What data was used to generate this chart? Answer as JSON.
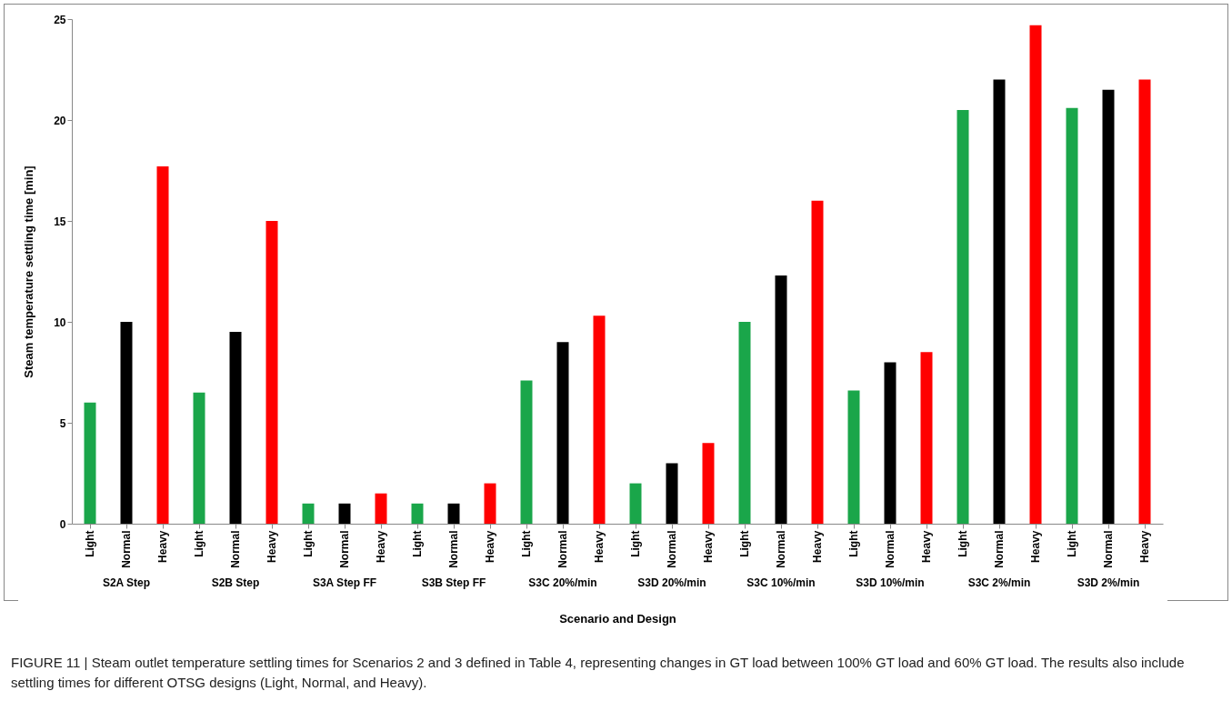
{
  "chart_data": {
    "type": "bar",
    "xlabel": "Scenario and Design",
    "ylabel": "Steam temperature settling time [min]",
    "categories": [
      "S2A Step",
      "S2B Step",
      "S3A Step FF",
      "S3B Step FF",
      "S3C 20%/min",
      "S3D 20%/min",
      "S3C 10%/min",
      "S3D 10%/min",
      "S3C 2%/min",
      "S3D 2%/min"
    ],
    "series": [
      {
        "name": "Light",
        "color": "#1aa64a",
        "values": [
          6,
          6.5,
          1,
          1,
          7.1,
          2,
          10,
          6.6,
          20.5,
          20.6
        ]
      },
      {
        "name": "Normal",
        "color": "#000000",
        "values": [
          10,
          9.5,
          1,
          1,
          9,
          3,
          12.3,
          8,
          22,
          21.5
        ]
      },
      {
        "name": "Heavy",
        "color": "#ff0000",
        "values": [
          17.7,
          15,
          1.5,
          2,
          10.3,
          4,
          16,
          8.5,
          24.7,
          22
        ]
      }
    ],
    "ylim": [
      0,
      25
    ],
    "yticks": [
      0,
      5,
      10,
      15,
      20,
      25
    ],
    "grid": false,
    "legend": false,
    "annotations": [
      "FIGURE 11 | Steam outlet temperature settling times for Scenarios 2 and 3 defined in Table 4, representing changes in GT load between 100% GT load and 60% GT load. The results also include settling times for different OTSG designs (Light, Normal, and Heavy)."
    ]
  }
}
